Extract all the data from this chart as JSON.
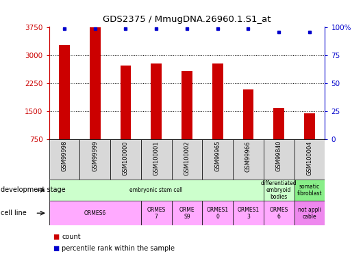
{
  "title": "GDS2375 / MmugDNA.26960.1.S1_at",
  "samples": [
    "GSM99998",
    "GSM99999",
    "GSM100000",
    "GSM100001",
    "GSM100002",
    "GSM99965",
    "GSM99966",
    "GSM99840",
    "GSM100004"
  ],
  "counts": [
    3290,
    3750,
    2730,
    2780,
    2580,
    2780,
    2090,
    1590,
    1460
  ],
  "percentile_vals": [
    99,
    99,
    99,
    99,
    99,
    99,
    99,
    96,
    96
  ],
  "ymin": 750,
  "ymax": 3750,
  "yticks_left": [
    750,
    1500,
    2250,
    3000,
    3750
  ],
  "yticks_right": [
    0,
    25,
    50,
    75,
    100
  ],
  "ytick_right_labels": [
    "0",
    "25",
    "50",
    "75",
    "100%"
  ],
  "bar_color": "#cc0000",
  "dot_color": "#0000cc",
  "grid_lines": [
    1500,
    2250,
    3000
  ],
  "dev_spans": [
    {
      "cs": 0,
      "ce": 7,
      "label": "embryonic stem cell",
      "color": "#ccffcc"
    },
    {
      "cs": 7,
      "ce": 8,
      "label": "differentiated\nembryoid\nbodies",
      "color": "#ccffcc"
    },
    {
      "cs": 8,
      "ce": 9,
      "label": "somatic\nfibroblast",
      "color": "#88ee88"
    }
  ],
  "cell_spans": [
    {
      "cs": 0,
      "ce": 3,
      "label": "ORMES6",
      "color": "#ffaaff"
    },
    {
      "cs": 3,
      "ce": 4,
      "label": "ORMES\n7",
      "color": "#ffaaff"
    },
    {
      "cs": 4,
      "ce": 5,
      "label": "ORME\nS9",
      "color": "#ffaaff"
    },
    {
      "cs": 5,
      "ce": 6,
      "label": "ORMES1\n0",
      "color": "#ffaaff"
    },
    {
      "cs": 6,
      "ce": 7,
      "label": "ORMES1\n3",
      "color": "#ffaaff"
    },
    {
      "cs": 7,
      "ce": 8,
      "label": "ORMES\n6",
      "color": "#ffaaff"
    },
    {
      "cs": 8,
      "ce": 9,
      "label": "not appli\ncable",
      "color": "#ee88ee"
    }
  ],
  "left_label1": "development stage",
  "left_label2": "cell line",
  "legend1": "count",
  "legend2": "percentile rank within the sample",
  "bar_width": 0.35,
  "figw": 5.3,
  "figh": 3.75
}
